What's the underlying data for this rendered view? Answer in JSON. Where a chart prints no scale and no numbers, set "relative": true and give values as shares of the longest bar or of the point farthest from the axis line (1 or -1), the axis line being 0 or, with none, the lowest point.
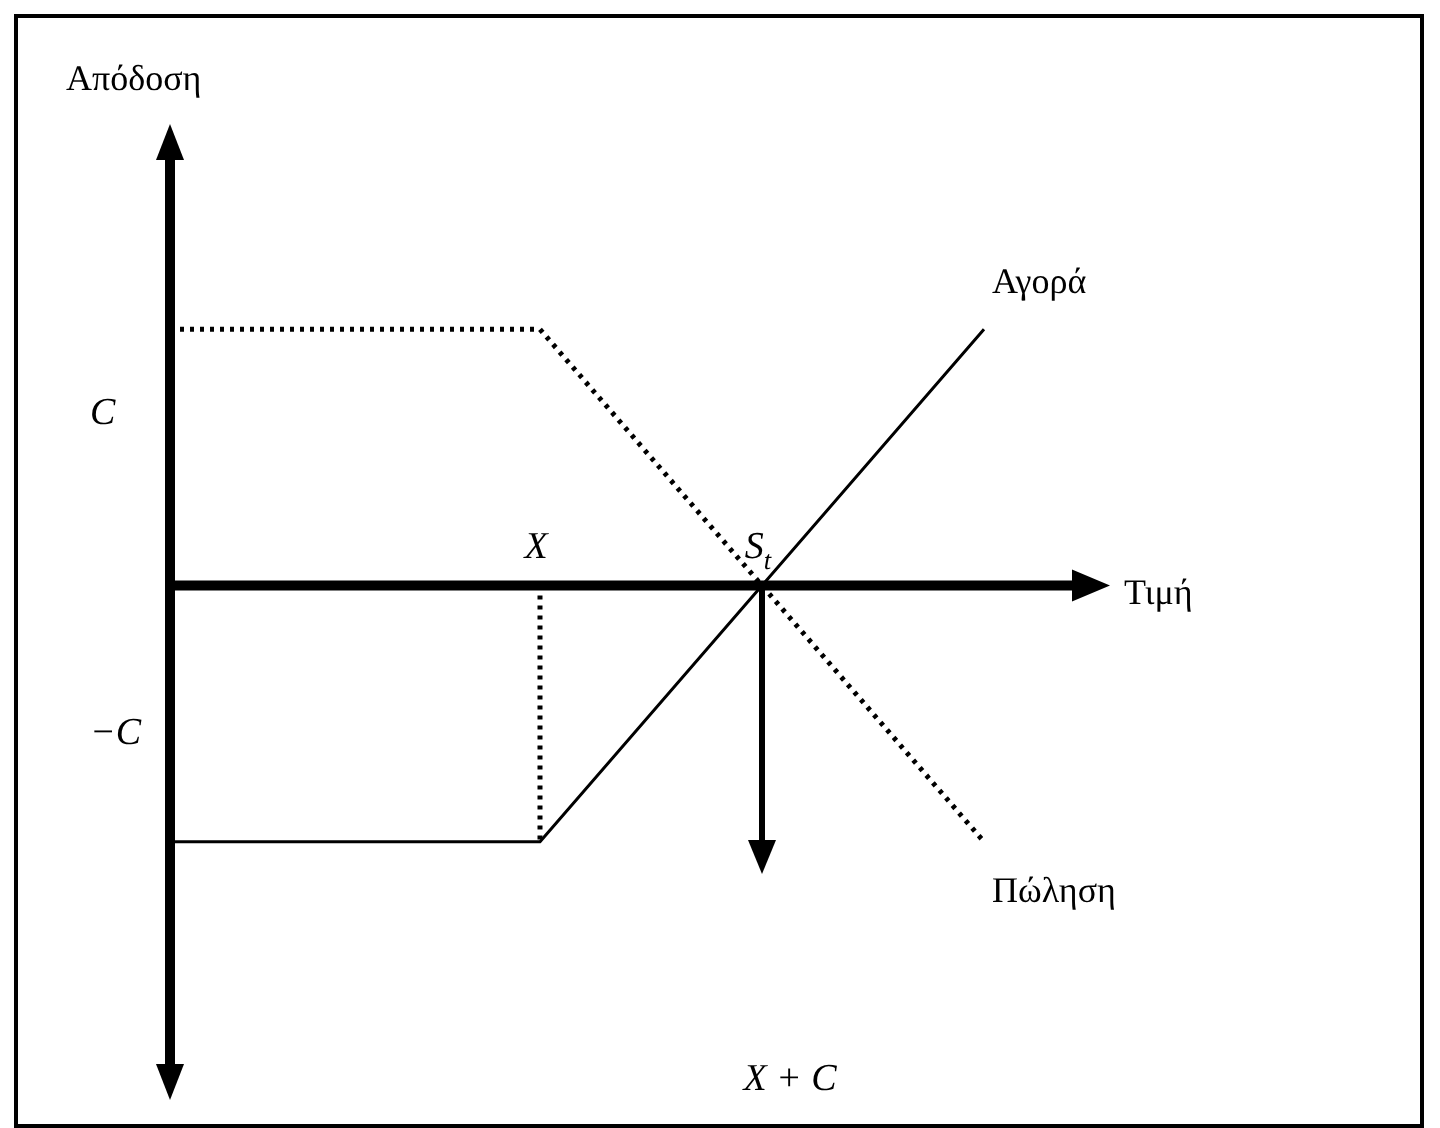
{
  "chart_data": {
    "type": "line",
    "relative": true,
    "xlabel": "Τιμή",
    "marker": "none",
    "categories": [
      null,
      null,
      null,
      null,
      null,
      "X",
      null,
      null,
      "S$_{t}$",
      null,
      null,
      null
    ],
    "series": [
      {
        "name": "Αγορά",
        "color": "#000000",
        "line_style": "solid",
        "values": [
          -1,
          null,
          null,
          null,
          null,
          -1,
          null,
          null,
          0,
          null,
          null,
          1
        ]
      },
      {
        "name": "Πώληση",
        "color": "#000000",
        "line_style": "dotted",
        "values": [
          1,
          null,
          null,
          null,
          null,
          1,
          null,
          null,
          0,
          null,
          null,
          -1
        ]
      }
    ],
    "annotations": [
      "Απόδοση",
      "C",
      "−C",
      "X + C"
    ]
  }
}
